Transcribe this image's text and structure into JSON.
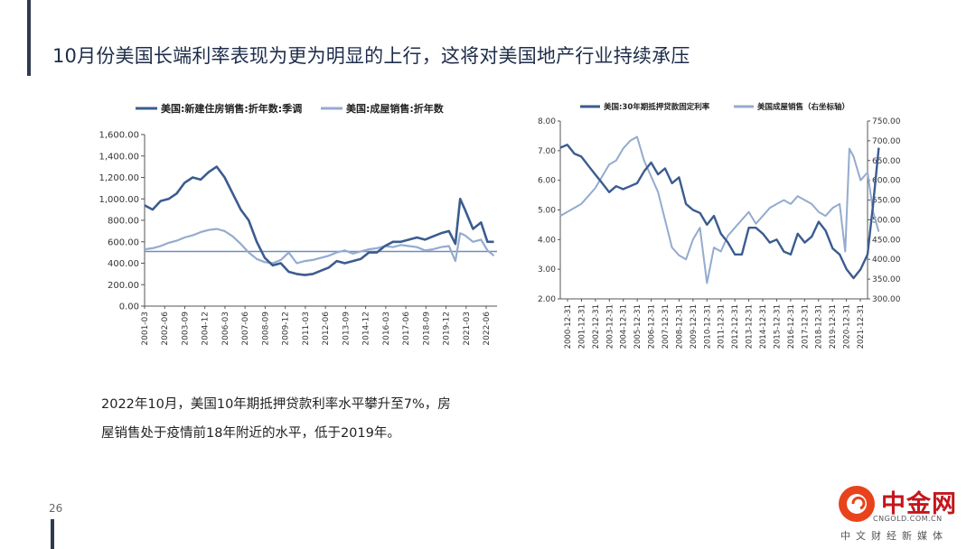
{
  "header": {
    "title": "10月份美国长端利率表现为更为明显的上行，这将对美国地产行业持续承压"
  },
  "note": {
    "line1": "2022年10月，美国10年期抵押贷款利率水平攀升至7%，房",
    "line2": "屋销售处于疫情前18年附近的水平，低于2019年。"
  },
  "footer": {
    "page_number": "26",
    "logo_name": "中金网",
    "logo_url": "CNGOLD.COM.CN",
    "logo_tagline": "中文财经新媒体"
  },
  "colors": {
    "dark_series": "#3b5c8f",
    "light_series": "#94abcf",
    "accent": "#2f3a4f"
  },
  "chart_data": [
    {
      "type": "line",
      "title": "",
      "legend_placement": "top",
      "ylim": [
        0,
        1600
      ],
      "yticks": [
        "0.00",
        "200.00",
        "400.00",
        "600.00",
        "800.00",
        "1,000.00",
        "1,200.00",
        "1,400.00",
        "1,600.00"
      ],
      "xlim": [
        2001.0,
        2023.0
      ],
      "xticks": [
        "2001-03",
        "2002-06",
        "2003-09",
        "2004-12",
        "2006-03",
        "2007-06",
        "2008-09",
        "2009-12",
        "2011-03",
        "2012-06",
        "2013-09",
        "2014-12",
        "2016-03",
        "2017-06",
        "2018-09",
        "2019-12",
        "2021-03",
        "2022-06"
      ],
      "reference_line": 510,
      "series": [
        {
          "name": "美国:新建住房销售:折年数:季调",
          "color": "#3b5c8f",
          "x": [
            2001.0,
            2001.5,
            2002.0,
            2002.5,
            2003.0,
            2003.5,
            2004.0,
            2004.5,
            2005.0,
            2005.5,
            2006.0,
            2006.5,
            2007.0,
            2007.5,
            2008.0,
            2008.5,
            2009.0,
            2009.5,
            2010.0,
            2010.5,
            2011.0,
            2011.5,
            2012.0,
            2012.5,
            2013.0,
            2013.5,
            2014.0,
            2014.5,
            2015.0,
            2015.5,
            2016.0,
            2016.5,
            2017.0,
            2017.5,
            2018.0,
            2018.5,
            2019.0,
            2019.5,
            2020.0,
            2020.4,
            2020.7,
            2021.0,
            2021.5,
            2022.0,
            2022.4,
            2022.8
          ],
          "y": [
            940,
            900,
            980,
            1000,
            1050,
            1150,
            1200,
            1180,
            1250,
            1300,
            1200,
            1050,
            900,
            800,
            600,
            450,
            380,
            400,
            320,
            300,
            290,
            300,
            330,
            360,
            420,
            400,
            420,
            440,
            500,
            500,
            560,
            600,
            600,
            620,
            640,
            620,
            650,
            680,
            700,
            580,
            1000,
            900,
            720,
            780,
            600,
            600
          ]
        },
        {
          "name": "美国:成屋销售:折年数",
          "color": "#94abcf",
          "x": [
            2001.0,
            2001.5,
            2002.0,
            2002.5,
            2003.0,
            2003.5,
            2004.0,
            2004.5,
            2005.0,
            2005.5,
            2006.0,
            2006.5,
            2007.0,
            2007.5,
            2008.0,
            2008.5,
            2009.0,
            2009.5,
            2010.0,
            2010.5,
            2011.0,
            2011.5,
            2012.0,
            2012.5,
            2013.0,
            2013.5,
            2014.0,
            2014.5,
            2015.0,
            2015.5,
            2016.0,
            2016.5,
            2017.0,
            2017.5,
            2018.0,
            2018.5,
            2019.0,
            2019.5,
            2020.0,
            2020.4,
            2020.7,
            2021.0,
            2021.5,
            2022.0,
            2022.4,
            2022.8
          ],
          "y": [
            530,
            540,
            560,
            590,
            610,
            640,
            660,
            690,
            710,
            720,
            700,
            650,
            580,
            500,
            440,
            410,
            400,
            430,
            500,
            400,
            420,
            430,
            450,
            470,
            500,
            520,
            490,
            510,
            530,
            540,
            560,
            550,
            570,
            560,
            550,
            520,
            530,
            550,
            560,
            420,
            680,
            660,
            600,
            620,
            520,
            470
          ]
        }
      ]
    },
    {
      "type": "line",
      "title": "",
      "legend_placement": "top",
      "ylim": [
        2.0,
        8.0
      ],
      "yticks": [
        "2.00",
        "3.00",
        "4.00",
        "5.00",
        "6.00",
        "7.00",
        "8.00"
      ],
      "y2lim": [
        300,
        750
      ],
      "y2ticks": [
        "300.00",
        "350.00",
        "400.00",
        "450.00",
        "500.00",
        "550.00",
        "600.00",
        "650.00",
        "700.00",
        "750.00"
      ],
      "xlim": [
        2000.0,
        2022.0
      ],
      "xticks": [
        "2000-12-31",
        "2001-12-31",
        "2002-12-31",
        "2003-12-31",
        "2004-12-31",
        "2005-12-31",
        "2006-12-31",
        "2007-12-31",
        "2008-12-31",
        "2009-12-31",
        "2010-12-31",
        "2011-12-31",
        "2012-12-31",
        "2013-12-31",
        "2014-12-31",
        "2015-12-31",
        "2016-12-31",
        "2017-12-31",
        "2018-12-31",
        "2019-12-31",
        "2020-12-31",
        "2021-12-31"
      ],
      "series": [
        {
          "name": "美国:30年期抵押贷款固定利率",
          "color": "#3b5c8f",
          "axis": "left",
          "x": [
            2000.0,
            2000.5,
            2001.0,
            2001.5,
            2002.0,
            2002.5,
            2003.0,
            2003.5,
            2004.0,
            2004.5,
            2005.0,
            2005.5,
            2006.0,
            2006.5,
            2007.0,
            2007.5,
            2008.0,
            2008.5,
            2009.0,
            2009.5,
            2010.0,
            2010.5,
            2011.0,
            2011.5,
            2012.0,
            2012.5,
            2013.0,
            2013.5,
            2014.0,
            2014.5,
            2015.0,
            2015.5,
            2016.0,
            2016.5,
            2017.0,
            2017.5,
            2018.0,
            2018.5,
            2019.0,
            2019.5,
            2020.0,
            2020.5,
            2021.0,
            2021.5,
            2022.0,
            2022.4,
            2022.8
          ],
          "y": [
            7.1,
            7.2,
            6.9,
            6.8,
            6.5,
            6.2,
            5.9,
            5.6,
            5.8,
            5.7,
            5.8,
            5.9,
            6.3,
            6.6,
            6.2,
            6.4,
            5.9,
            6.1,
            5.2,
            5.0,
            4.9,
            4.5,
            4.8,
            4.2,
            3.9,
            3.5,
            3.5,
            4.4,
            4.4,
            4.2,
            3.9,
            4.0,
            3.6,
            3.5,
            4.2,
            3.9,
            4.1,
            4.6,
            4.3,
            3.7,
            3.5,
            3.0,
            2.7,
            3.0,
            3.5,
            5.2,
            7.1
          ]
        },
        {
          "name": "美国成屋销售（右坐标轴）",
          "color": "#94abcf",
          "axis": "right",
          "x": [
            2000.0,
            2000.5,
            2001.0,
            2001.5,
            2002.0,
            2002.5,
            2003.0,
            2003.5,
            2004.0,
            2004.5,
            2005.0,
            2005.5,
            2006.0,
            2006.5,
            2007.0,
            2007.5,
            2008.0,
            2008.5,
            2009.0,
            2009.5,
            2010.0,
            2010.5,
            2011.0,
            2011.5,
            2012.0,
            2012.5,
            2013.0,
            2013.5,
            2014.0,
            2014.5,
            2015.0,
            2015.5,
            2016.0,
            2016.5,
            2017.0,
            2017.5,
            2018.0,
            2018.5,
            2019.0,
            2019.5,
            2020.0,
            2020.4,
            2020.7,
            2021.0,
            2021.5,
            2022.0,
            2022.4,
            2022.8
          ],
          "y": [
            510,
            520,
            530,
            540,
            560,
            580,
            610,
            640,
            650,
            680,
            700,
            710,
            650,
            610,
            570,
            500,
            430,
            410,
            400,
            450,
            480,
            340,
            430,
            420,
            460,
            480,
            500,
            520,
            490,
            510,
            530,
            540,
            550,
            540,
            560,
            550,
            540,
            520,
            510,
            530,
            540,
            420,
            680,
            660,
            600,
            620,
            520,
            470
          ]
        }
      ]
    }
  ]
}
